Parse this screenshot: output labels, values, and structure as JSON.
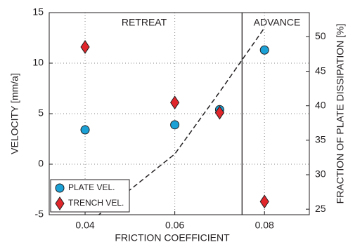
{
  "chart_data": {
    "type": "scatter",
    "xlabel": "FRICTION COEFFICIENT",
    "ylabel": "VELOCITY [mm/a]",
    "y2label": "FRACTION OF PLATE DISSIPATION [%]",
    "xlim": [
      0.032,
      0.09
    ],
    "xticks": [
      0.04,
      0.06,
      0.08
    ],
    "ylim": [
      -5,
      15
    ],
    "yticks": [
      -5,
      0,
      5,
      10,
      15
    ],
    "y2lim": [
      24.2,
      53.5
    ],
    "y2ticks": [
      25,
      30,
      35,
      40,
      45,
      50
    ],
    "grid": true,
    "legend": "lower left",
    "boundary_x": 0.075,
    "annotations": [
      "RETREAT",
      "ADVANCE"
    ],
    "series": [
      {
        "name": "PLATE VEL.",
        "color": "#1ba1d6",
        "marker": "circle",
        "x": [
          0.04,
          0.06,
          0.07,
          0.08
        ],
        "values": [
          3.4,
          3.9,
          5.4,
          11.3
        ]
      },
      {
        "name": "TRENCH VEL.",
        "color": "#e0262b",
        "marker": "diamond",
        "x": [
          0.04,
          0.06,
          0.07,
          0.08
        ],
        "values": [
          11.6,
          6.1,
          5.1,
          -3.7
        ]
      }
    ],
    "line": {
      "axis": "y2",
      "color": "#231f20",
      "x": [
        0.04,
        0.06,
        0.07,
        0.08
      ],
      "values": [
        22.6,
        33,
        42,
        51.3
      ]
    }
  }
}
